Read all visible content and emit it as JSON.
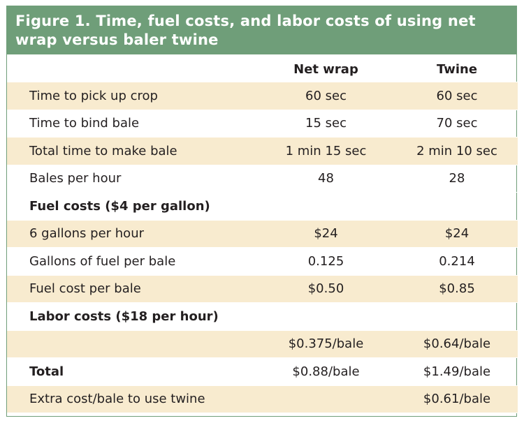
{
  "figure": {
    "title": "Figure 1. Time, fuel costs, and labor costs of using net wrap versus baler twine"
  },
  "table": {
    "headers": [
      "",
      "Net wrap",
      "Twine"
    ],
    "rows": [
      {
        "label": "Time to pick up crop",
        "net_wrap": "60 sec",
        "twine": "60 sec"
      },
      {
        "label": "Time to bind bale",
        "net_wrap": "15 sec",
        "twine": "70 sec"
      },
      {
        "label": "Total time to make bale",
        "net_wrap": "1 min 15 sec",
        "twine": "2 min 10 sec"
      },
      {
        "label": "Bales per hour",
        "net_wrap": "48",
        "twine": "28"
      },
      {
        "label": "Fuel costs ($4 per gallon)",
        "net_wrap": "",
        "twine": ""
      },
      {
        "label": "6 gallons per hour",
        "net_wrap": "$24",
        "twine": "$24"
      },
      {
        "label": "Gallons of fuel per bale",
        "net_wrap": "0.125",
        "twine": "0.214"
      },
      {
        "label": "Fuel cost per bale",
        "net_wrap": "$0.50",
        "twine": "$0.85"
      },
      {
        "label": "Labor costs ($18 per hour)",
        "net_wrap": "",
        "twine": ""
      },
      {
        "label": "",
        "net_wrap": "$0.375/bale",
        "twine": "$0.64/bale"
      },
      {
        "label": "Total",
        "net_wrap": "$0.88/bale",
        "twine": "$1.49/bale"
      },
      {
        "label": "Extra cost/bale to use twine",
        "net_wrap": "",
        "twine": "$0.61/bale"
      }
    ]
  },
  "colors": {
    "title_bar": "#6f9e79",
    "shaded_row": "#f8ebcf",
    "border": "#6f9e79"
  }
}
